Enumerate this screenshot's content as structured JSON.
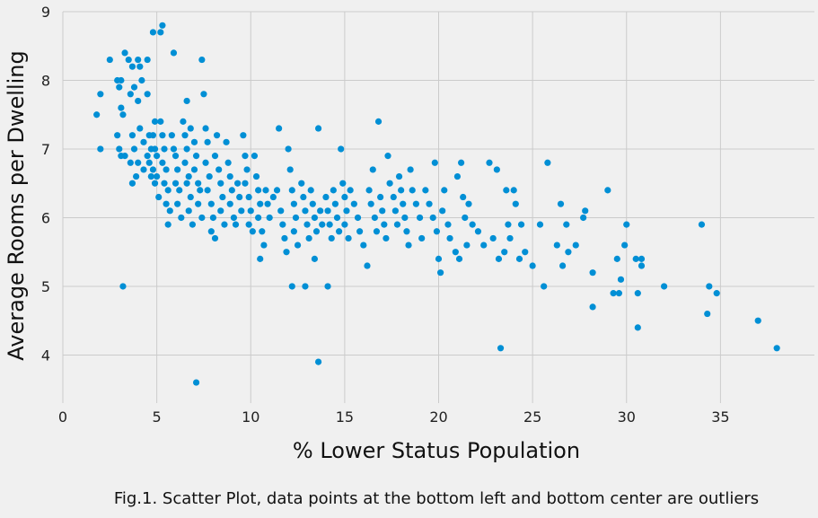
{
  "caption": "Fig.1. Scatter Plot, data points at the bottom left and bottom center are outliers",
  "chart_data": {
    "type": "scatter",
    "title": "",
    "xlabel": "% Lower Status Population",
    "ylabel": "Average Rooms per Dwelling",
    "xlim": [
      0,
      40
    ],
    "ylim": [
      3.3,
      9.0
    ],
    "x_ticks": [
      0,
      5,
      10,
      15,
      20,
      25,
      30,
      35
    ],
    "y_ticks": [
      4,
      5,
      6,
      7,
      8,
      9
    ],
    "grid": true,
    "marker_color": "#008fd5",
    "background": "#f0f0f0",
    "points": [
      [
        1.8,
        7.5
      ],
      [
        2.0,
        7.8
      ],
      [
        2.0,
        7.0
      ],
      [
        2.5,
        8.3
      ],
      [
        2.9,
        8.0
      ],
      [
        3.1,
        8.0
      ],
      [
        3.0,
        7.9
      ],
      [
        3.1,
        7.6
      ],
      [
        3.2,
        7.5
      ],
      [
        3.3,
        8.4
      ],
      [
        2.9,
        7.2
      ],
      [
        3.0,
        7.0
      ],
      [
        3.1,
        6.9
      ],
      [
        3.3,
        6.9
      ],
      [
        3.2,
        5.0
      ],
      [
        3.5,
        8.3
      ],
      [
        3.7,
        8.2
      ],
      [
        3.8,
        7.9
      ],
      [
        3.6,
        7.8
      ],
      [
        3.7,
        7.2
      ],
      [
        3.8,
        7.0
      ],
      [
        3.6,
        6.8
      ],
      [
        3.9,
        6.6
      ],
      [
        3.7,
        6.5
      ],
      [
        4.0,
        8.3
      ],
      [
        4.1,
        8.2
      ],
      [
        4.2,
        8.0
      ],
      [
        4.0,
        7.7
      ],
      [
        4.1,
        7.3
      ],
      [
        4.3,
        7.1
      ],
      [
        4.0,
        6.8
      ],
      [
        4.3,
        6.7
      ],
      [
        4.5,
        8.3
      ],
      [
        4.5,
        7.8
      ],
      [
        4.6,
        7.2
      ],
      [
        4.7,
        7.0
      ],
      [
        4.5,
        6.9
      ],
      [
        4.6,
        6.8
      ],
      [
        4.7,
        6.6
      ],
      [
        4.8,
        8.7
      ],
      [
        4.9,
        7.4
      ],
      [
        4.8,
        7.2
      ],
      [
        4.9,
        7.0
      ],
      [
        5.0,
        6.9
      ],
      [
        4.8,
        6.7
      ],
      [
        5.0,
        6.6
      ],
      [
        4.9,
        6.5
      ],
      [
        5.1,
        6.3
      ],
      [
        5.2,
        8.7
      ],
      [
        5.3,
        8.8
      ],
      [
        5.2,
        7.4
      ],
      [
        5.3,
        7.2
      ],
      [
        5.4,
        7.0
      ],
      [
        5.3,
        6.8
      ],
      [
        5.5,
        6.7
      ],
      [
        5.4,
        6.5
      ],
      [
        5.6,
        6.4
      ],
      [
        5.5,
        6.2
      ],
      [
        5.7,
        6.1
      ],
      [
        5.6,
        5.9
      ],
      [
        5.9,
        8.4
      ],
      [
        5.8,
        7.2
      ],
      [
        5.9,
        7.0
      ],
      [
        6.0,
        6.9
      ],
      [
        6.1,
        6.7
      ],
      [
        6.0,
        6.5
      ],
      [
        6.2,
        6.4
      ],
      [
        6.1,
        6.2
      ],
      [
        6.3,
        6.0
      ],
      [
        6.4,
        7.4
      ],
      [
        6.5,
        7.2
      ],
      [
        6.6,
        7.0
      ],
      [
        6.5,
        6.8
      ],
      [
        6.7,
        6.6
      ],
      [
        6.6,
        6.5
      ],
      [
        6.8,
        6.3
      ],
      [
        6.7,
        6.1
      ],
      [
        6.9,
        5.9
      ],
      [
        6.6,
        7.7
      ],
      [
        6.8,
        7.3
      ],
      [
        7.0,
        7.1
      ],
      [
        7.1,
        6.9
      ],
      [
        7.0,
        6.7
      ],
      [
        7.2,
        6.5
      ],
      [
        7.3,
        6.4
      ],
      [
        7.2,
        6.2
      ],
      [
        7.4,
        6.0
      ],
      [
        7.1,
        3.6
      ],
      [
        7.4,
        8.3
      ],
      [
        7.5,
        7.8
      ],
      [
        7.6,
        7.3
      ],
      [
        7.7,
        7.1
      ],
      [
        7.6,
        6.8
      ],
      [
        7.8,
        6.6
      ],
      [
        7.7,
        6.4
      ],
      [
        7.9,
        6.2
      ],
      [
        8.0,
        6.0
      ],
      [
        7.9,
        5.8
      ],
      [
        8.1,
        5.7
      ],
      [
        8.2,
        7.2
      ],
      [
        8.1,
        6.9
      ],
      [
        8.3,
        6.7
      ],
      [
        8.4,
        6.5
      ],
      [
        8.5,
        6.3
      ],
      [
        8.4,
        6.1
      ],
      [
        8.6,
        5.9
      ],
      [
        8.7,
        7.1
      ],
      [
        8.8,
        6.8
      ],
      [
        8.9,
        6.6
      ],
      [
        9.0,
        6.4
      ],
      [
        8.9,
        6.2
      ],
      [
        9.1,
        6.0
      ],
      [
        9.2,
        5.9
      ],
      [
        9.3,
        6.5
      ],
      [
        9.4,
        6.3
      ],
      [
        9.5,
        6.1
      ],
      [
        9.6,
        7.2
      ],
      [
        9.7,
        6.9
      ],
      [
        9.8,
        6.7
      ],
      [
        9.7,
        6.5
      ],
      [
        9.9,
        6.3
      ],
      [
        10.0,
        6.1
      ],
      [
        9.9,
        5.9
      ],
      [
        10.1,
        5.8
      ],
      [
        10.2,
        6.9
      ],
      [
        10.3,
        6.6
      ],
      [
        10.4,
        6.4
      ],
      [
        10.5,
        6.2
      ],
      [
        10.4,
        6.0
      ],
      [
        10.6,
        5.8
      ],
      [
        10.5,
        5.4
      ],
      [
        10.7,
        5.6
      ],
      [
        10.8,
        6.4
      ],
      [
        10.9,
        6.2
      ],
      [
        11.0,
        6.0
      ],
      [
        11.2,
        6.3
      ],
      [
        11.4,
        6.4
      ],
      [
        11.5,
        7.3
      ],
      [
        11.6,
        6.1
      ],
      [
        11.7,
        5.9
      ],
      [
        11.8,
        5.7
      ],
      [
        11.9,
        5.5
      ],
      [
        12.0,
        7.0
      ],
      [
        12.1,
        6.7
      ],
      [
        12.2,
        6.4
      ],
      [
        12.3,
        6.2
      ],
      [
        12.4,
        6.0
      ],
      [
        12.3,
        5.8
      ],
      [
        12.5,
        5.6
      ],
      [
        12.2,
        5.0
      ],
      [
        12.7,
        6.5
      ],
      [
        12.8,
        6.3
      ],
      [
        12.9,
        6.1
      ],
      [
        13.0,
        5.9
      ],
      [
        12.9,
        5.0
      ],
      [
        13.1,
        5.7
      ],
      [
        13.2,
        6.4
      ],
      [
        13.3,
        6.2
      ],
      [
        13.4,
        6.0
      ],
      [
        13.5,
        5.8
      ],
      [
        13.4,
        5.4
      ],
      [
        13.6,
        7.3
      ],
      [
        13.7,
        6.1
      ],
      [
        13.8,
        5.9
      ],
      [
        13.6,
        3.9
      ],
      [
        14.0,
        6.3
      ],
      [
        14.1,
        6.1
      ],
      [
        14.2,
        5.9
      ],
      [
        14.3,
        5.7
      ],
      [
        14.1,
        5.0
      ],
      [
        14.4,
        6.4
      ],
      [
        14.5,
        6.2
      ],
      [
        14.6,
        6.0
      ],
      [
        14.7,
        5.8
      ],
      [
        14.8,
        7.0
      ],
      [
        14.9,
        6.5
      ],
      [
        15.0,
        6.3
      ],
      [
        15.1,
        6.1
      ],
      [
        15.0,
        5.9
      ],
      [
        15.2,
        5.7
      ],
      [
        15.3,
        6.4
      ],
      [
        15.5,
        6.2
      ],
      [
        15.7,
        6.0
      ],
      [
        15.8,
        5.8
      ],
      [
        16.0,
        5.6
      ],
      [
        16.2,
        5.3
      ],
      [
        16.3,
        6.4
      ],
      [
        16.4,
        6.2
      ],
      [
        16.5,
        6.7
      ],
      [
        16.6,
        6.0
      ],
      [
        16.7,
        5.8
      ],
      [
        16.8,
        7.4
      ],
      [
        16.9,
        6.3
      ],
      [
        17.0,
        6.1
      ],
      [
        17.1,
        5.9
      ],
      [
        17.2,
        5.7
      ],
      [
        17.3,
        6.9
      ],
      [
        17.4,
        6.5
      ],
      [
        17.6,
        6.3
      ],
      [
        17.7,
        6.1
      ],
      [
        17.8,
        5.9
      ],
      [
        17.9,
        6.6
      ],
      [
        18.0,
        6.4
      ],
      [
        18.1,
        6.2
      ],
      [
        18.2,
        6.0
      ],
      [
        18.3,
        5.8
      ],
      [
        18.4,
        5.6
      ],
      [
        18.5,
        6.7
      ],
      [
        18.6,
        6.4
      ],
      [
        18.8,
        6.2
      ],
      [
        19.0,
        6.0
      ],
      [
        19.1,
        5.7
      ],
      [
        19.3,
        6.4
      ],
      [
        19.5,
        6.2
      ],
      [
        19.7,
        6.0
      ],
      [
        19.8,
        6.8
      ],
      [
        19.9,
        5.8
      ],
      [
        20.0,
        5.4
      ],
      [
        20.1,
        5.2
      ],
      [
        20.2,
        6.1
      ],
      [
        20.3,
        6.4
      ],
      [
        20.5,
        5.9
      ],
      [
        20.6,
        5.7
      ],
      [
        20.9,
        5.5
      ],
      [
        21.0,
        6.6
      ],
      [
        21.1,
        5.4
      ],
      [
        21.2,
        6.8
      ],
      [
        21.3,
        6.3
      ],
      [
        21.4,
        6.0
      ],
      [
        21.5,
        5.6
      ],
      [
        21.6,
        6.2
      ],
      [
        21.8,
        5.9
      ],
      [
        22.1,
        5.8
      ],
      [
        22.4,
        5.6
      ],
      [
        22.7,
        6.8
      ],
      [
        22.9,
        5.7
      ],
      [
        23.1,
        6.7
      ],
      [
        23.2,
        5.4
      ],
      [
        23.3,
        4.1
      ],
      [
        23.5,
        5.5
      ],
      [
        23.6,
        6.4
      ],
      [
        23.7,
        5.9
      ],
      [
        23.8,
        5.7
      ],
      [
        24.0,
        6.4
      ],
      [
        24.1,
        6.2
      ],
      [
        24.3,
        5.4
      ],
      [
        24.4,
        5.9
      ],
      [
        24.6,
        5.5
      ],
      [
        25.0,
        5.3
      ],
      [
        25.4,
        5.9
      ],
      [
        25.6,
        5.0
      ],
      [
        25.8,
        6.8
      ],
      [
        26.3,
        5.6
      ],
      [
        26.5,
        6.2
      ],
      [
        26.6,
        5.3
      ],
      [
        26.8,
        5.9
      ],
      [
        26.9,
        5.5
      ],
      [
        27.3,
        5.6
      ],
      [
        27.7,
        6.0
      ],
      [
        27.8,
        6.1
      ],
      [
        28.2,
        5.2
      ],
      [
        28.2,
        4.7
      ],
      [
        29.0,
        6.4
      ],
      [
        29.3,
        4.9
      ],
      [
        29.5,
        5.4
      ],
      [
        29.6,
        4.9
      ],
      [
        29.7,
        5.1
      ],
      [
        29.9,
        5.6
      ],
      [
        30.0,
        5.9
      ],
      [
        30.5,
        5.4
      ],
      [
        30.6,
        4.9
      ],
      [
        30.6,
        4.4
      ],
      [
        30.8,
        5.4
      ],
      [
        30.8,
        5.3
      ],
      [
        32.0,
        5.0
      ],
      [
        34.0,
        5.9
      ],
      [
        34.3,
        4.6
      ],
      [
        34.4,
        5.0
      ],
      [
        34.8,
        4.9
      ],
      [
        37.0,
        4.5
      ],
      [
        38.0,
        4.1
      ]
    ]
  }
}
